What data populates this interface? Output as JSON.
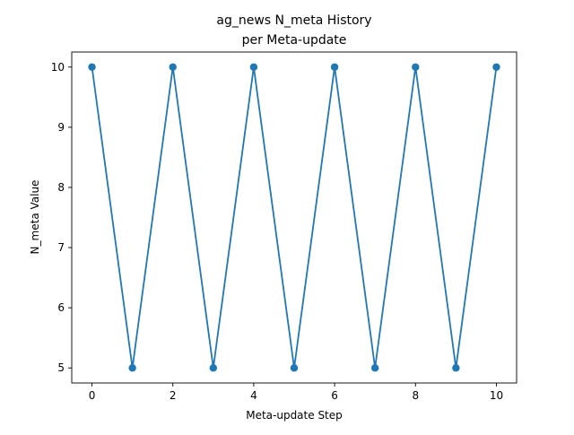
{
  "chart_data": {
    "type": "line",
    "title_lines": [
      "ag_news N_meta History",
      "per Meta-update"
    ],
    "xlabel": "Meta-update Step",
    "ylabel": "N_meta Value",
    "xlim": [
      -0.5,
      10.5
    ],
    "ylim": [
      4.75,
      10.25
    ],
    "xticks": [
      0,
      2,
      4,
      6,
      8,
      10
    ],
    "yticks": [
      5,
      6,
      7,
      8,
      9,
      10
    ],
    "grid": false,
    "series": [
      {
        "color": "#1f77b4",
        "marker": "circle",
        "x": [
          0,
          1,
          2,
          3,
          4,
          5,
          6,
          7,
          8,
          9,
          10
        ],
        "y": [
          10,
          5,
          10,
          5,
          10,
          5,
          10,
          5,
          10,
          5,
          10
        ]
      }
    ]
  }
}
